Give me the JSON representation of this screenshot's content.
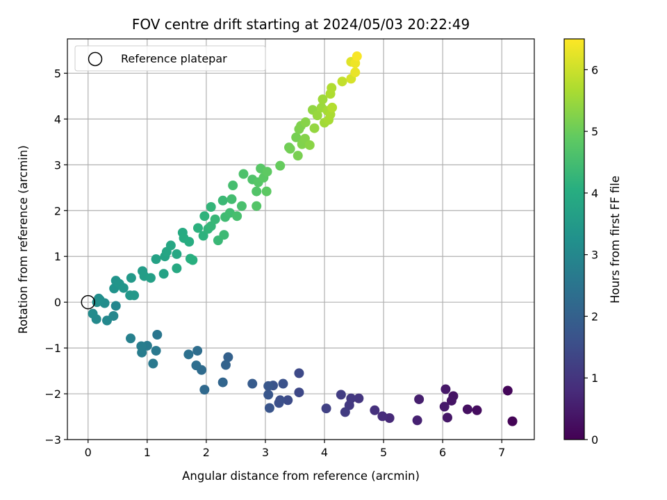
{
  "chart_data": {
    "type": "scatter",
    "title": "FOV centre drift starting at 2024/05/03 20:22:49",
    "xlabel": "Angular distance from reference (arcmin)",
    "ylabel": "Rotation from reference (arcmin)",
    "xlim": [
      -0.35,
      7.55
    ],
    "ylim": [
      -3.0,
      5.75
    ],
    "xticks": [
      0,
      1,
      2,
      3,
      4,
      5,
      6,
      7
    ],
    "yticks": [
      -3,
      -2,
      -1,
      0,
      1,
      2,
      3,
      4,
      5
    ],
    "grid": true,
    "legend": {
      "placement": "top-left",
      "entries": [
        "Reference platepar"
      ]
    },
    "reference_point": {
      "x": 0,
      "y": 0
    },
    "colorbar": {
      "label": "Hours from first FF file",
      "colormap": "viridis",
      "range": [
        0,
        6.5
      ],
      "ticks": [
        0,
        1,
        2,
        3,
        4,
        5,
        6
      ]
    },
    "points": [
      [
        7.18,
        -2.6,
        0.05
      ],
      [
        7.1,
        -1.93,
        0.1
      ],
      [
        6.58,
        -2.36,
        0.22
      ],
      [
        6.42,
        -2.34,
        0.28
      ],
      [
        6.18,
        -2.05,
        0.33
      ],
      [
        6.15,
        -2.15,
        0.36
      ],
      [
        6.08,
        -2.52,
        0.4
      ],
      [
        6.05,
        -1.9,
        0.42
      ],
      [
        6.03,
        -2.28,
        0.46
      ],
      [
        5.6,
        -2.12,
        0.55
      ],
      [
        5.57,
        -2.58,
        0.6
      ],
      [
        5.1,
        -2.53,
        0.75
      ],
      [
        4.98,
        -2.49,
        0.82
      ],
      [
        4.85,
        -2.36,
        0.9
      ],
      [
        4.58,
        -2.1,
        1.0
      ],
      [
        4.45,
        -2.1,
        1.05
      ],
      [
        4.42,
        -2.25,
        1.08
      ],
      [
        4.35,
        -2.4,
        1.12
      ],
      [
        4.28,
        -2.02,
        1.16
      ],
      [
        4.03,
        -2.32,
        1.25
      ],
      [
        3.57,
        -1.97,
        1.4
      ],
      [
        3.57,
        -1.55,
        1.45
      ],
      [
        3.38,
        -2.14,
        1.5
      ],
      [
        3.25,
        -2.14,
        1.55
      ],
      [
        3.23,
        -2.2,
        1.58
      ],
      [
        3.3,
        -1.78,
        1.62
      ],
      [
        3.13,
        -1.82,
        1.66
      ],
      [
        3.07,
        -2.31,
        1.7
      ],
      [
        3.05,
        -2.02,
        1.73
      ],
      [
        3.05,
        -1.83,
        1.76
      ],
      [
        2.78,
        -1.78,
        1.85
      ],
      [
        2.37,
        -1.2,
        2.0
      ],
      [
        2.33,
        -1.37,
        2.05
      ],
      [
        2.28,
        -1.75,
        2.1
      ],
      [
        1.97,
        -1.91,
        2.2
      ],
      [
        1.92,
        -1.48,
        2.25
      ],
      [
        1.85,
        -1.06,
        2.3
      ],
      [
        1.83,
        -1.38,
        2.33
      ],
      [
        1.7,
        -1.14,
        2.38
      ],
      [
        1.17,
        -0.71,
        2.55
      ],
      [
        1.15,
        -1.06,
        2.6
      ],
      [
        1.1,
        -1.34,
        2.62
      ],
      [
        1.0,
        -0.95,
        2.66
      ],
      [
        0.91,
        -1.1,
        2.7
      ],
      [
        0.9,
        -0.96,
        2.73
      ],
      [
        0.72,
        -0.79,
        2.8
      ],
      [
        0.47,
        -0.08,
        2.95
      ],
      [
        0.43,
        -0.3,
        2.98
      ],
      [
        0.32,
        -0.4,
        3.02
      ],
      [
        0.14,
        -0.37,
        3.05
      ],
      [
        0.08,
        -0.25,
        3.08
      ],
      [
        0.28,
        -0.02,
        3.12
      ],
      [
        0.18,
        0.08,
        3.15
      ],
      [
        0.2,
        0.05,
        3.17
      ],
      [
        0.15,
        0.0,
        3.19
      ],
      [
        0.44,
        0.3,
        3.3
      ],
      [
        0.47,
        0.47,
        3.33
      ],
      [
        0.53,
        0.4,
        3.36
      ],
      [
        0.6,
        0.31,
        3.39
      ],
      [
        0.71,
        0.15,
        3.42
      ],
      [
        0.78,
        0.15,
        3.45
      ],
      [
        0.73,
        0.53,
        3.48
      ],
      [
        0.92,
        0.68,
        3.55
      ],
      [
        0.95,
        0.57,
        3.6
      ],
      [
        1.06,
        0.53,
        3.63
      ],
      [
        1.15,
        0.94,
        3.7
      ],
      [
        1.28,
        0.62,
        3.73
      ],
      [
        1.3,
        1.0,
        3.76
      ],
      [
        1.33,
        1.1,
        3.8
      ],
      [
        1.4,
        1.24,
        3.84
      ],
      [
        1.5,
        1.05,
        3.88
      ],
      [
        1.5,
        0.74,
        3.9
      ],
      [
        1.6,
        1.52,
        3.95
      ],
      [
        1.62,
        1.4,
        3.98
      ],
      [
        1.71,
        1.32,
        4.02
      ],
      [
        1.73,
        0.95,
        4.05
      ],
      [
        1.77,
        0.92,
        4.08
      ],
      [
        1.86,
        1.62,
        4.12
      ],
      [
        1.95,
        1.45,
        4.15
      ],
      [
        1.97,
        1.88,
        4.18
      ],
      [
        2.03,
        1.6,
        4.22
      ],
      [
        2.08,
        2.08,
        4.25
      ],
      [
        2.08,
        1.66,
        4.28
      ],
      [
        2.15,
        1.81,
        4.31
      ],
      [
        2.2,
        1.35,
        4.34
      ],
      [
        2.28,
        2.22,
        4.37
      ],
      [
        2.3,
        1.47,
        4.4
      ],
      [
        2.32,
        1.86,
        4.43
      ],
      [
        2.4,
        1.95,
        4.46
      ],
      [
        2.43,
        2.25,
        4.49
      ],
      [
        2.45,
        2.55,
        4.52
      ],
      [
        2.52,
        1.88,
        4.55
      ],
      [
        2.6,
        2.1,
        4.58
      ],
      [
        2.63,
        2.8,
        4.62
      ],
      [
        2.78,
        2.68,
        4.66
      ],
      [
        2.85,
        2.42,
        4.7
      ],
      [
        2.85,
        2.1,
        4.72
      ],
      [
        2.88,
        2.62,
        4.75
      ],
      [
        2.92,
        2.92,
        4.78
      ],
      [
        2.97,
        2.72,
        4.81
      ],
      [
        3.02,
        2.42,
        4.84
      ],
      [
        3.03,
        2.85,
        4.87
      ],
      [
        3.25,
        2.98,
        4.95
      ],
      [
        3.4,
        3.38,
        5.05
      ],
      [
        3.42,
        3.35,
        5.08
      ],
      [
        3.52,
        3.6,
        5.12
      ],
      [
        3.55,
        3.2,
        5.15
      ],
      [
        3.57,
        3.78,
        5.18
      ],
      [
        3.6,
        3.85,
        5.21
      ],
      [
        3.62,
        3.45,
        5.24
      ],
      [
        3.67,
        3.57,
        5.27
      ],
      [
        3.68,
        3.93,
        5.3
      ],
      [
        3.75,
        3.43,
        5.33
      ],
      [
        3.8,
        4.2,
        5.4
      ],
      [
        3.83,
        3.8,
        5.43
      ],
      [
        3.88,
        4.08,
        5.46
      ],
      [
        3.95,
        4.25,
        5.5
      ],
      [
        3.97,
        4.43,
        5.53
      ],
      [
        4.0,
        3.92,
        5.56
      ],
      [
        4.05,
        4.18,
        5.6
      ],
      [
        4.07,
        3.98,
        5.63
      ],
      [
        4.1,
        4.1,
        5.66
      ],
      [
        4.1,
        4.55,
        5.69
      ],
      [
        4.12,
        4.68,
        5.72
      ],
      [
        4.13,
        4.25,
        5.75
      ],
      [
        4.3,
        4.82,
        5.9
      ],
      [
        4.45,
        4.88,
        6.1
      ],
      [
        4.45,
        5.25,
        6.2
      ],
      [
        4.52,
        5.02,
        6.3
      ],
      [
        4.52,
        5.22,
        6.35
      ],
      [
        4.55,
        5.37,
        6.45
      ]
    ]
  }
}
